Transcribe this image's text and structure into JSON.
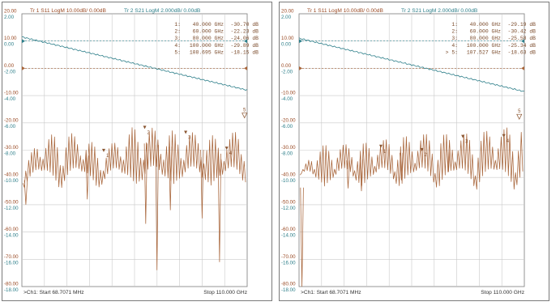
{
  "colors": {
    "s11": "#a8653a",
    "s21": "#2e7f8a",
    "grid": "#c9c9c9",
    "frame": "#7a7a7a"
  },
  "chart_data": [
    {
      "type": "line",
      "trace1": {
        "label": "Tr 1  S11 LogM 10.00dB/  0.00dB",
        "ticks": [
          "20.00",
          "10.00",
          "0.00",
          "-10.00",
          "-20.00",
          "-30.00",
          "-40.00",
          "-50.00",
          "-60.00",
          "-70.00",
          "-80.00"
        ]
      },
      "trace2": {
        "label": "Tr 2  S21 LogM 2.000dB/  0.00dB",
        "ticks": [
          "2.00",
          "0.00",
          "-2.00",
          "-4.00",
          "-6.00",
          "-8.00",
          "-10.00",
          "-12.00",
          "-14.00",
          "-16.00",
          "-18.00"
        ]
      },
      "markers": [
        {
          "row": "1:",
          "freq": "40.000 GHz",
          "value": "-30.70 dB"
        },
        {
          "row": "2:",
          "freq": "60.000 GHz",
          "value": "-22.23 dB"
        },
        {
          "row": "3:",
          "freq": "80.000 GHz",
          "value": "-24.06 dB"
        },
        {
          "row": "4:",
          "freq": "100.000 GHz",
          "value": "-29.89 dB"
        },
        {
          "row": "5:",
          "freq": "108.695 GHz",
          "value": "-18.15 dB"
        }
      ],
      "marker_points": [
        {
          "id": "1",
          "x": 40,
          "y": -30.7
        },
        {
          "id": "2",
          "x": 60,
          "y": -22.23
        },
        {
          "id": "3",
          "x": 80,
          "y": -24.06
        },
        {
          "id": "4",
          "x": 100,
          "y": -29.89
        },
        {
          "id": "5",
          "x": 108.695,
          "y": -18.15
        }
      ],
      "start_label": ">Ch1:  Start  68.7071 MHz",
      "stop_label": "Stop  110.000 GHz",
      "xlim": [
        0.0687071,
        110
      ],
      "s11_ylim": [
        -80,
        20
      ],
      "s21_ylim": [
        -18,
        2
      ],
      "s21_line": {
        "x": [
          0.0687071,
          110
        ],
        "y": [
          0.3,
          -3.6
        ]
      },
      "s11_envelope": {
        "x": [
          0,
          8,
          20,
          30,
          40,
          55,
          65,
          75,
          90,
          100,
          110
        ],
        "y": [
          -38,
          -26,
          -23,
          -25,
          -30,
          -21,
          -22,
          -23,
          -24,
          -26,
          -18
        ]
      },
      "s11_dips": [
        {
          "x": 2.0,
          "y": -50
        },
        {
          "x": 32.0,
          "y": -48
        },
        {
          "x": 60.5,
          "y": -57
        },
        {
          "x": 66.0,
          "y": -74
        },
        {
          "x": 72.5,
          "y": -52
        },
        {
          "x": 88.0,
          "y": -55
        },
        {
          "x": 96.5,
          "y": -71
        }
      ],
      "xgrid": true,
      "ygrid": true
    },
    {
      "type": "line",
      "trace1": {
        "label": "Tr 1  S11 LogM 10.00dB/  0.00dB",
        "ticks": [
          "20.00",
          "10.00",
          "0.00",
          "-10.00",
          "-20.00",
          "-30.00",
          "-40.00",
          "-50.00",
          "-60.00",
          "-70.00",
          "-80.00"
        ]
      },
      "trace2": {
        "label": "Tr 2  S21 LogM 2.000dB/  0.00dB",
        "ticks": [
          "2.00",
          "0.00",
          "-2.00",
          "-4.00",
          "-6.00",
          "-8.00",
          "-10.00",
          "-12.00",
          "-14.00",
          "-16.00",
          "-18.00"
        ]
      },
      "markers": [
        {
          "row": "1:",
          "freq": "40.000 GHz",
          "value": "-29.19 dB"
        },
        {
          "row": "2:",
          "freq": "60.000 GHz",
          "value": "-30.42 dB"
        },
        {
          "row": "3:",
          "freq": "80.000 GHz",
          "value": "-25.58 dB"
        },
        {
          "row": "4:",
          "freq": "100.000 GHz",
          "value": "-25.34 dB"
        },
        {
          "row": "> 5:",
          "freq": "107.527 GHz",
          "value": "-18.63 dB"
        }
      ],
      "marker_points": [
        {
          "id": "1",
          "x": 40,
          "y": -29.19
        },
        {
          "id": "2",
          "x": 60,
          "y": -30.42
        },
        {
          "id": "3",
          "x": 80,
          "y": -25.58
        },
        {
          "id": "4",
          "x": 100,
          "y": -25.34
        },
        {
          "id": "5",
          "x": 107.527,
          "y": -18.63
        }
      ],
      "start_label": ">Ch1:  Start  68.7071 MHz",
      "stop_label": "Stop  110.000 GHz",
      "xlim": [
        0.0687071,
        110
      ],
      "s11_ylim": [
        -80,
        20
      ],
      "s21_ylim": [
        -18,
        2
      ],
      "s21_line": {
        "x": [
          0.0687071,
          110
        ],
        "y": [
          0.2,
          -3.7
        ]
      },
      "s11_envelope": {
        "x": [
          0,
          8,
          20,
          35,
          50,
          60,
          70,
          80,
          90,
          100,
          110
        ],
        "y": [
          -40,
          -28,
          -28,
          -27,
          -25,
          -24,
          -24,
          -24,
          -23,
          -22,
          -19
        ]
      },
      "s11_dips": [
        {
          "x": 1.5,
          "y": -80
        },
        {
          "x": 24.0,
          "y": -44
        },
        {
          "x": 30.5,
          "y": -45
        },
        {
          "x": 50.0,
          "y": -41
        },
        {
          "x": 73.0,
          "y": -38
        }
      ],
      "xgrid": true,
      "ygrid": true
    }
  ]
}
